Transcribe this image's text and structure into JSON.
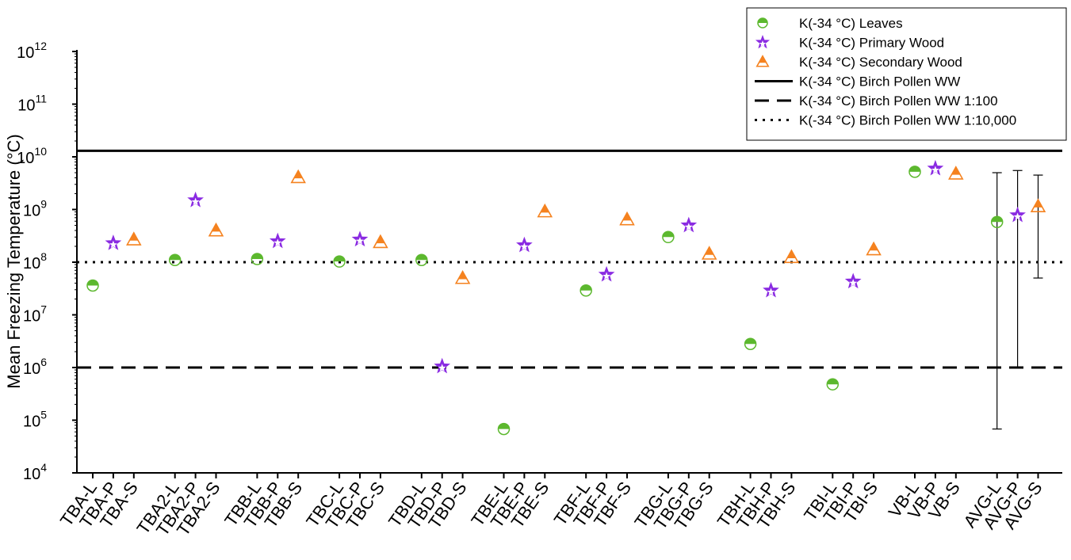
{
  "chart_data": {
    "type": "scatter",
    "title": "",
    "ylabel": "Mean Freezing Temperature (°C)",
    "xlabel": "",
    "yscale": "log",
    "ylim": [
      10000,
      1000000000000
    ],
    "yticks": [
      {
        "value": 10000,
        "base": "10",
        "exp": "4"
      },
      {
        "value": 100000,
        "base": "10",
        "exp": "5"
      },
      {
        "value": 1000000,
        "base": "10",
        "exp": "6"
      },
      {
        "value": 10000000,
        "base": "10",
        "exp": "7"
      },
      {
        "value": 100000000,
        "base": "10",
        "exp": "8"
      },
      {
        "value": 1000000000,
        "base": "10",
        "exp": "9"
      },
      {
        "value": 10000000000,
        "base": "10",
        "exp": "10"
      },
      {
        "value": 100000000000,
        "base": "10",
        "exp": "11"
      },
      {
        "value": 1000000000000,
        "base": "10",
        "exp": "12"
      }
    ],
    "categories": [
      "TBA-L",
      "TBA-P",
      "TBA-S",
      "TBA2-L",
      "TBA2-P",
      "TBA2-S",
      "TBB-L",
      "TBB-P",
      "TBB-S",
      "TBC-L",
      "TBC-P",
      "TBC-S",
      "TBD-L",
      "TBD-P",
      "TBD-S",
      "TBE-L",
      "TBE-P",
      "TBE-S",
      "TBF-L",
      "TBF-P",
      "TBF-S",
      "TBG-L",
      "TBG-P",
      "TBG-S",
      "TBH-L",
      "TBH-P",
      "TBH-S",
      "TBI-L",
      "TBI-P",
      "TBI-S",
      "VB-L",
      "VB-P",
      "VB-S",
      "AVG-L",
      "AVG-P",
      "AVG-S"
    ],
    "series": [
      {
        "name": "K(-34 °C) Leaves",
        "marker": "half-circle",
        "color": "#5cb82e",
        "points": [
          {
            "category": "TBA-L",
            "y": 36000000
          },
          {
            "category": "TBA2-L",
            "y": 110000000
          },
          {
            "category": "TBB-L",
            "y": 115000000
          },
          {
            "category": "TBC-L",
            "y": 103000000
          },
          {
            "category": "TBD-L",
            "y": 110000000
          },
          {
            "category": "TBE-L",
            "y": 68000
          },
          {
            "category": "TBF-L",
            "y": 29000000
          },
          {
            "category": "TBG-L",
            "y": 300000000
          },
          {
            "category": "TBH-L",
            "y": 2800000
          },
          {
            "category": "TBI-L",
            "y": 480000
          },
          {
            "category": "VB-L",
            "y": 5200000000
          },
          {
            "category": "AVG-L",
            "y": 580000000,
            "err_low": 68000,
            "err_high": 5000000000
          }
        ]
      },
      {
        "name": "K(-34 °C) Primary Wood",
        "marker": "star",
        "color": "#8a2be2",
        "points": [
          {
            "category": "TBA-P",
            "y": 230000000
          },
          {
            "category": "TBA2-P",
            "y": 1500000000
          },
          {
            "category": "TBB-P",
            "y": 250000000
          },
          {
            "category": "TBC-P",
            "y": 270000000
          },
          {
            "category": "TBD-P",
            "y": 1050000
          },
          {
            "category": "TBE-P",
            "y": 210000000
          },
          {
            "category": "TBF-P",
            "y": 58000000
          },
          {
            "category": "TBG-P",
            "y": 500000000
          },
          {
            "category": "TBH-P",
            "y": 29000000
          },
          {
            "category": "TBI-P",
            "y": 43000000
          },
          {
            "category": "VB-P",
            "y": 6000000000
          },
          {
            "category": "AVG-P",
            "y": 780000000,
            "err_low": 1000000,
            "err_high": 5500000000
          }
        ]
      },
      {
        "name": "K(-34 °C) Secondary Wood",
        "marker": "half-triangle",
        "color": "#f5821f",
        "points": [
          {
            "category": "TBA-S",
            "y": 270000000
          },
          {
            "category": "TBA2-S",
            "y": 400000000
          },
          {
            "category": "TBB-S",
            "y": 4100000000
          },
          {
            "category": "TBC-S",
            "y": 240000000
          },
          {
            "category": "TBD-S",
            "y": 50000000
          },
          {
            "category": "TBE-S",
            "y": 920000000
          },
          {
            "category": "TBF-S",
            "y": 650000000
          },
          {
            "category": "TBG-S",
            "y": 145000000
          },
          {
            "category": "TBH-S",
            "y": 125000000
          },
          {
            "category": "TBI-S",
            "y": 175000000
          },
          {
            "category": "VB-S",
            "y": 4800000000
          },
          {
            "category": "AVG-S",
            "y": 1150000000,
            "err_low": 50000000,
            "err_high": 4500000000
          }
        ]
      }
    ],
    "reference_lines": [
      {
        "name": "K(-34 °C) Birch Pollen WW",
        "y": 13000000000,
        "style": "solid"
      },
      {
        "name": "K(-34 °C) Birch Pollen WW 1:100",
        "y": 1000000,
        "style": "dashed"
      },
      {
        "name": "K(-34 °C) Birch Pollen WW 1:10,000",
        "y": 100000000,
        "style": "dotted"
      }
    ],
    "legend_position": "top-right",
    "grid": false
  }
}
